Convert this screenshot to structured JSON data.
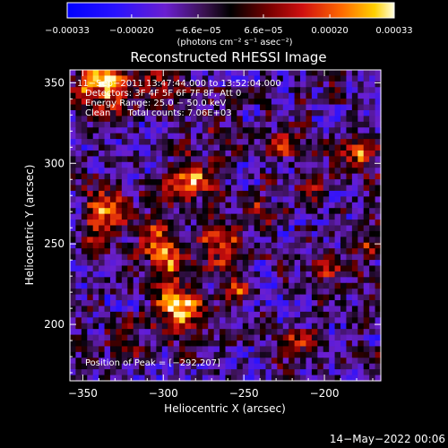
{
  "chart_data": {
    "type": "heatmap",
    "title": "Reconstructed RHESSI Image",
    "xlabel": "Heliocentric X (arcsec)",
    "ylabel": "Heliocentric Y (arcsec)",
    "x_range": [
      -358,
      -165
    ],
    "y_range": [
      165,
      358
    ],
    "x_ticks": [
      -350,
      -300,
      -250,
      -200
    ],
    "y_ticks": [
      200,
      250,
      300,
      350
    ],
    "x_tick_labels": [
      "−350",
      "−300",
      "−250",
      "−200"
    ],
    "y_tick_labels": [
      "200",
      "250",
      "300",
      "350"
    ],
    "grid": false,
    "colorbar": {
      "range": [
        -0.00033,
        0.00033
      ],
      "tick_values": [
        -0.00033,
        -0.0002,
        -6.6e-05,
        6.6e-05,
        0.0002,
        0.00033
      ],
      "tick_labels": [
        "−0.00033",
        "−0.00020",
        "−6.6e−05",
        "6.6e−05",
        "0.00020",
        "0.00033"
      ],
      "unit_label": "(photons cm⁻² s⁻¹ asec⁻²)"
    },
    "annotations": [
      "11−Sep−2011 13:47:44.000 to 13:52:04.000",
      "Detectors: 3F 4F 5F 6F 7F 8F, Att 0",
      "Energy Range: 25.0 − 50.0 keV",
      "Clean      Total counts: 7.06E+03"
    ],
    "peak_label": "Position of Peak = [−292,207]",
    "peak": [
      -292,
      207
    ],
    "sources": [
      {
        "x": -340,
        "y": 350,
        "amp": 0.00036,
        "sigma": 12
      },
      {
        "x": -335,
        "y": 270,
        "amp": 0.00028,
        "sigma": 9
      },
      {
        "x": -345,
        "y": 250,
        "amp": 0.00016,
        "sigma": 8
      },
      {
        "x": -300,
        "y": 350,
        "amp": 0.00018,
        "sigma": 7
      },
      {
        "x": -285,
        "y": 290,
        "amp": 0.00032,
        "sigma": 9
      },
      {
        "x": -305,
        "y": 255,
        "amp": 0.00022,
        "sigma": 7
      },
      {
        "x": -295,
        "y": 240,
        "amp": 0.00031,
        "sigma": 9
      },
      {
        "x": -290,
        "y": 210,
        "amp": 0.00033,
        "sigma": 10
      },
      {
        "x": -265,
        "y": 250,
        "amp": 0.0003,
        "sigma": 9
      },
      {
        "x": -255,
        "y": 220,
        "amp": 0.00022,
        "sigma": 7
      },
      {
        "x": -225,
        "y": 310,
        "amp": 0.00018,
        "sigma": 7
      },
      {
        "x": -240,
        "y": 270,
        "amp": 0.00016,
        "sigma": 7
      },
      {
        "x": -200,
        "y": 235,
        "amp": 0.00022,
        "sigma": 7
      },
      {
        "x": -178,
        "y": 305,
        "amp": 0.00027,
        "sigma": 7
      },
      {
        "x": -215,
        "y": 190,
        "amp": 0.00017,
        "sigma": 7
      },
      {
        "x": -320,
        "y": 185,
        "amp": 0.00016,
        "sigma": 8
      },
      {
        "x": -175,
        "y": 250,
        "amp": 0.00013,
        "sigma": 6
      },
      {
        "x": -270,
        "y": 320,
        "amp": 0.00011,
        "sigma": 6
      },
      {
        "x": -210,
        "y": 280,
        "amp": 0.00012,
        "sigma": 6
      }
    ],
    "background_level": -8e-05
  },
  "footer": {
    "timestamp": "14−May−2022 00:06"
  }
}
